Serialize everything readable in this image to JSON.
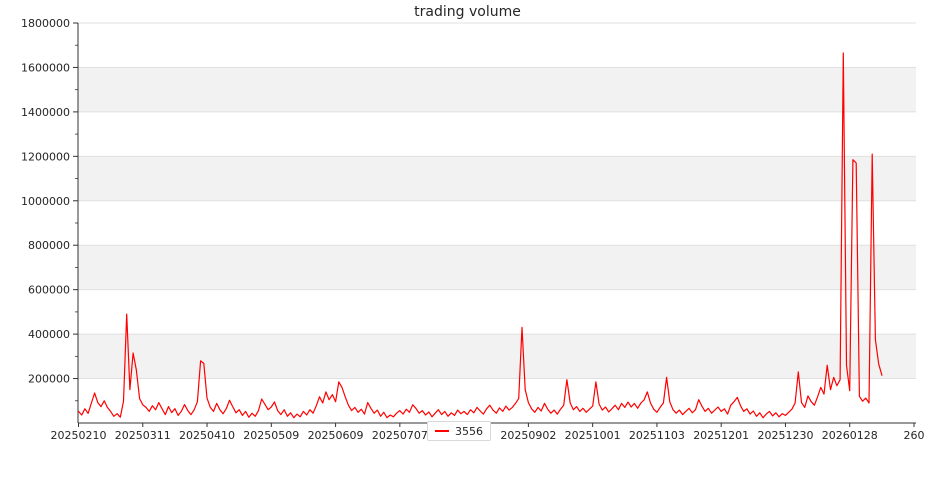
{
  "title": "trading volume",
  "legend": {
    "label": "3556",
    "marker_color": "#ff0000"
  },
  "colors": {
    "line": "#ff0000",
    "band_fill": "#f2f2f2",
    "gridline": "#e0e0e0",
    "spine": "#333333",
    "tick_text": "#262626",
    "background": "#ffffff"
  },
  "chart_data": {
    "type": "line",
    "title": "trading volume",
    "series_name": "3556",
    "xlabel": "",
    "ylabel": "",
    "ylim": [
      0,
      1800000
    ],
    "grid": "horizontal",
    "legend_position": "lower center outside",
    "band_fill_ranges": [
      [
        200000,
        400000
      ],
      [
        600000,
        800000
      ],
      [
        1000000,
        1200000
      ],
      [
        1400000,
        1600000
      ]
    ],
    "y_tick_values": [
      200000,
      400000,
      600000,
      800000,
      1000000,
      1200000,
      1400000,
      1600000,
      1800000
    ],
    "y_tick_labels": [
      "200000",
      "400000",
      "600000",
      "800000",
      "1000000",
      "1200000",
      "1400000",
      "1600000",
      "1800000"
    ],
    "y_minor_tick_step": 100000,
    "x_index_range": [
      0,
      260
    ],
    "x_tick_positions": [
      0,
      20,
      40,
      60,
      80,
      100,
      120,
      140,
      160,
      180,
      200,
      220,
      240,
      260
    ],
    "x_tick_labels": [
      "20250210",
      "20250311",
      "20250410",
      "20250509",
      "20250609",
      "20250707",
      "",
      "20250902",
      "20251001",
      "20251103",
      "20251201",
      "20251230",
      "20260128",
      "260"
    ],
    "n_points": 251,
    "values": [
      52000,
      36000,
      64000,
      43000,
      90000,
      135000,
      92000,
      74000,
      100000,
      70000,
      52000,
      30000,
      42000,
      26000,
      98000,
      490000,
      150000,
      315000,
      240000,
      110000,
      82000,
      70000,
      52000,
      78000,
      60000,
      92000,
      64000,
      38000,
      74000,
      47000,
      65000,
      34000,
      52000,
      83000,
      56000,
      38000,
      60000,
      96000,
      280000,
      268000,
      112000,
      70000,
      52000,
      88000,
      60000,
      42000,
      65000,
      102000,
      74000,
      46000,
      60000,
      34000,
      52000,
      26000,
      44000,
      30000,
      56000,
      108000,
      84000,
      60000,
      72000,
      95000,
      55000,
      38000,
      60000,
      30000,
      46000,
      24000,
      40000,
      28000,
      52000,
      36000,
      60000,
      44000,
      78000,
      118000,
      90000,
      140000,
      105000,
      128000,
      96000,
      185000,
      160000,
      118000,
      80000,
      56000,
      70000,
      48000,
      62000,
      40000,
      92000,
      66000,
      44000,
      58000,
      30000,
      48000,
      24000,
      36000,
      28000,
      44000,
      56000,
      40000,
      62000,
      48000,
      82000,
      66000,
      44000,
      56000,
      36000,
      50000,
      28000,
      44000,
      60000,
      38000,
      52000,
      30000,
      46000,
      34000,
      58000,
      42000,
      52000,
      38000,
      60000,
      46000,
      70000,
      54000,
      40000,
      64000,
      80000,
      58000,
      44000,
      68000,
      52000,
      76000,
      58000,
      70000,
      88000,
      110000,
      430000,
      150000,
      92000,
      64000,
      48000,
      70000,
      54000,
      88000,
      62000,
      44000,
      58000,
      40000,
      62000,
      80000,
      195000,
      90000,
      60000,
      74000,
      52000,
      66000,
      48000,
      62000,
      76000,
      185000,
      85000,
      58000,
      72000,
      50000,
      64000,
      80000,
      60000,
      88000,
      70000,
      94000,
      72000,
      88000,
      66000,
      90000,
      104000,
      140000,
      90000,
      62000,
      48000,
      70000,
      90000,
      205000,
      95000,
      60000,
      44000,
      58000,
      38000,
      52000,
      66000,
      46000,
      60000,
      105000,
      76000,
      52000,
      66000,
      44000,
      58000,
      72000,
      52000,
      64000,
      40000,
      80000,
      96000,
      115000,
      78000,
      52000,
      64000,
      40000,
      54000,
      30000,
      46000,
      24000,
      40000,
      52000,
      32000,
      46000,
      28000,
      42000,
      34000,
      48000,
      62000,
      90000,
      230000,
      92000,
      70000,
      122000,
      96000,
      80000,
      118000,
      160000,
      130000,
      260000,
      150000,
      205000,
      168000,
      195000,
      1665000,
      260000,
      145000,
      1185000,
      1170000,
      120000,
      98000,
      112000,
      90000,
      1210000,
      375000,
      265000,
      215000
    ]
  }
}
